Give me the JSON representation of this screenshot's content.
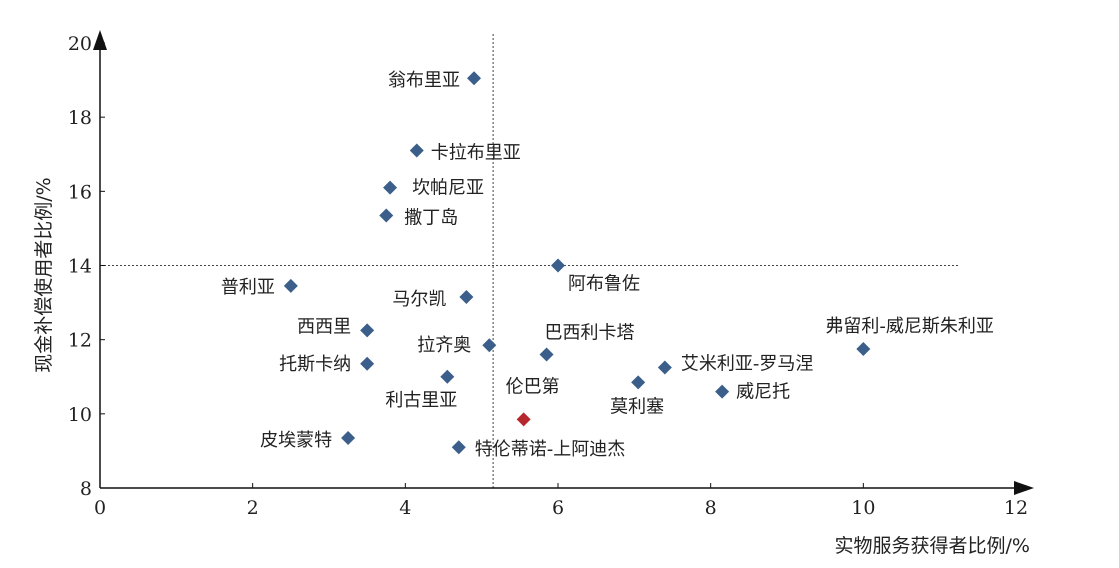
{
  "chart_data": {
    "type": "scatter",
    "xlabel": "实物服务获得者比例/%",
    "ylabel": "现金补偿使用者比例/%",
    "xlim": [
      0,
      12
    ],
    "ylim": [
      8,
      20
    ],
    "xticks": [
      "0",
      "2",
      "4",
      "6",
      "8",
      "10",
      "12"
    ],
    "yticks": [
      "8",
      "10",
      "12",
      "14",
      "16",
      "18",
      "20"
    ],
    "reference_lines": {
      "x": 5.15,
      "y": 14
    },
    "grid": false,
    "colors": {
      "point": "#3b5f8a",
      "highlight": "#b7282e"
    },
    "points": [
      {
        "name": "翁布里亚",
        "x": 4.9,
        "y": 19.05
      },
      {
        "name": "卡拉布里亚",
        "x": 4.15,
        "y": 17.1
      },
      {
        "name": "坎帕尼亚",
        "x": 3.8,
        "y": 16.1
      },
      {
        "name": "撒丁岛",
        "x": 3.75,
        "y": 15.35
      },
      {
        "name": "阿布鲁佐",
        "x": 6.0,
        "y": 14.0
      },
      {
        "name": "普利亚",
        "x": 2.5,
        "y": 13.45
      },
      {
        "name": "马尔凯",
        "x": 4.8,
        "y": 13.15
      },
      {
        "name": "西西里",
        "x": 3.5,
        "y": 12.25
      },
      {
        "name": "拉齐奥",
        "x": 5.1,
        "y": 11.85
      },
      {
        "name": "巴西利卡塔",
        "x": 5.85,
        "y": 11.6
      },
      {
        "name": "托斯卡纳",
        "x": 3.5,
        "y": 11.35
      },
      {
        "name": "利古里亚",
        "x": 4.55,
        "y": 11.0
      },
      {
        "name": "伦巴第",
        "x": 5.55,
        "y": 9.85,
        "highlight": true
      },
      {
        "name": "莫利塞",
        "x": 7.05,
        "y": 10.85
      },
      {
        "name": "艾米利亚-罗马涅",
        "x": 7.4,
        "y": 11.25
      },
      {
        "name": "威尼托",
        "x": 8.15,
        "y": 10.6
      },
      {
        "name": "弗留利-威尼斯朱利亚",
        "x": 10.0,
        "y": 11.75
      },
      {
        "name": "皮埃蒙特",
        "x": 3.25,
        "y": 9.35
      },
      {
        "name": "特伦蒂诺-上阿迪杰",
        "x": 4.7,
        "y": 9.1
      }
    ]
  }
}
